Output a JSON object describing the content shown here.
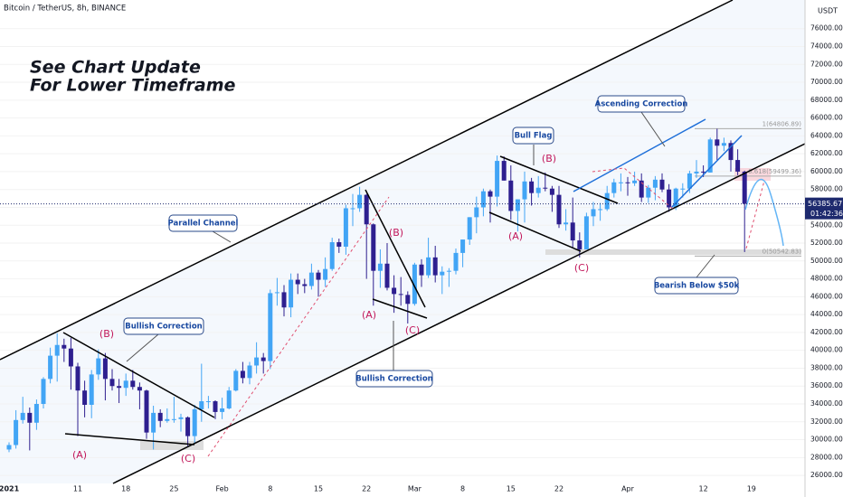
{
  "chart_data": {
    "type": "candlestick",
    "title": "Bitcoin / TetherUS, 8h, BINANCE",
    "currency": "USDT",
    "categories": [
      "2021",
      null,
      null,
      null,
      null,
      null,
      null,
      null,
      null,
      null,
      "11",
      null,
      null,
      null,
      null,
      null,
      null,
      "18",
      null,
      null,
      null,
      null,
      null,
      null,
      "25",
      null,
      null,
      null,
      null,
      null,
      null,
      "Feb",
      null,
      null,
      null,
      null,
      null,
      null,
      "8",
      null,
      null,
      null,
      null,
      null,
      null,
      "15",
      null,
      null,
      null,
      null,
      null,
      null,
      "22",
      null,
      null,
      null,
      null,
      null,
      null,
      "Mar",
      null,
      null,
      null,
      null,
      null,
      null,
      "8",
      null,
      null,
      null,
      null,
      null,
      null,
      "15",
      null,
      null,
      null,
      null,
      null,
      null,
      "22",
      null,
      null,
      null,
      null,
      null,
      null,
      null,
      null,
      null,
      "Apr",
      null,
      null,
      null,
      null,
      null,
      null,
      null,
      null,
      null,
      null,
      "12",
      null,
      null,
      null,
      null,
      null,
      null,
      "19"
    ],
    "open": [
      28900,
      29400,
      32200,
      33000,
      31900,
      34000,
      36800,
      39400,
      40600,
      40200,
      38200,
      35500,
      33900,
      37300,
      39100,
      36800,
      36000,
      35800,
      36600,
      35900,
      35500,
      30800,
      33000,
      32100,
      32300,
      32300,
      32500,
      30400,
      33400,
      34300,
      34300,
      33100,
      33500,
      35500,
      37700,
      36900,
      38300,
      39200,
      38800,
      46400,
      46500,
      44800,
      47900,
      47400,
      47200,
      48700,
      47900,
      49100,
      52100,
      51600,
      55900,
      55900,
      57400,
      54100,
      48900,
      49700,
      47000,
      46300,
      46200,
      45200,
      49600,
      48400,
      50400,
      48400,
      48800,
      48900,
      50900,
      52400,
      54900,
      56000,
      57800,
      57200,
      61200,
      59000,
      55600,
      56900,
      58900,
      57600,
      58200,
      58100,
      57400,
      54100,
      54300,
      52300,
      51300,
      55000,
      55800,
      55800,
      57600,
      58800,
      58800,
      58700,
      59000,
      57100,
      58200,
      59100,
      58000,
      56000,
      58100,
      58100,
      59800,
      60000,
      59900,
      63600,
      62900,
      63200,
      61300,
      60000,
      null
    ],
    "high": [
      29700,
      33300,
      34800,
      33600,
      34500,
      37000,
      40300,
      41900,
      41300,
      41400,
      38600,
      36600,
      37800,
      40100,
      39700,
      37900,
      36800,
      37400,
      37800,
      36400,
      35600,
      33800,
      33400,
      33500,
      34800,
      32900,
      32600,
      33900,
      38500,
      34900,
      34400,
      34700,
      35900,
      37900,
      38700,
      38700,
      40900,
      39700,
      46800,
      48100,
      47300,
      48600,
      48600,
      48000,
      49700,
      49000,
      50400,
      52600,
      52500,
      56300,
      57500,
      58300,
      57500,
      54200,
      51300,
      52000,
      48400,
      48200,
      46600,
      49800,
      50200,
      52600,
      51700,
      49400,
      49200,
      51400,
      52400,
      54900,
      57200,
      58100,
      58000,
      61800,
      61700,
      60700,
      56900,
      60000,
      59300,
      59500,
      59900,
      58400,
      58400,
      55800,
      57100,
      53200,
      55400,
      56600,
      56500,
      58400,
      59200,
      59800,
      59400,
      60000,
      59800,
      58500,
      59500,
      59800,
      58600,
      58200,
      58700,
      60100,
      61300,
      60700,
      63800,
      64800,
      63800,
      63500,
      62500,
      60100,
      null
    ],
    "low": [
      28600,
      29000,
      31800,
      28800,
      31100,
      33500,
      36300,
      36500,
      38700,
      35600,
      30400,
      32500,
      32400,
      36700,
      34400,
      35500,
      34100,
      34900,
      35600,
      33400,
      30100,
      28900,
      31400,
      31900,
      31900,
      30900,
      29300,
      29600,
      32000,
      33500,
      32300,
      32300,
      33400,
      35400,
      36300,
      36200,
      37400,
      37400,
      37900,
      45000,
      43800,
      43700,
      46300,
      46400,
      46800,
      46000,
      47100,
      48900,
      50900,
      50700,
      53900,
      55500,
      48000,
      45000,
      47000,
      46700,
      44200,
      45000,
      43000,
      45000,
      47100,
      48100,
      47600,
      46300,
      47100,
      48500,
      49300,
      51800,
      53100,
      55000,
      54300,
      56100,
      59000,
      54600,
      53300,
      54300,
      56200,
      57100,
      57800,
      55500,
      53700,
      53400,
      51500,
      50400,
      51300,
      53900,
      54500,
      55600,
      57100,
      57800,
      57300,
      58400,
      56600,
      56500,
      56800,
      57700,
      55500,
      55700,
      57100,
      57600,
      59300,
      59400,
      59900,
      61300,
      62300,
      60000,
      59600,
      51000,
      null
    ],
    "close": [
      29400,
      32200,
      33000,
      31900,
      34000,
      36800,
      39400,
      40600,
      40200,
      38200,
      35500,
      33900,
      37300,
      39100,
      36800,
      36000,
      35800,
      36600,
      35900,
      35500,
      30800,
      33000,
      32100,
      32300,
      32300,
      32500,
      30400,
      33400,
      34300,
      34300,
      33100,
      33500,
      35500,
      37700,
      36900,
      38300,
      39200,
      38800,
      46400,
      46500,
      44800,
      47900,
      47400,
      47200,
      48700,
      47900,
      49100,
      52100,
      51600,
      55900,
      55900,
      57400,
      54100,
      48900,
      49700,
      47000,
      46300,
      46200,
      45200,
      49600,
      48400,
      50400,
      48400,
      48800,
      48900,
      50900,
      52400,
      54900,
      56000,
      57800,
      57200,
      61200,
      59000,
      55600,
      56900,
      58900,
      57600,
      58200,
      58100,
      57400,
      54100,
      54300,
      52300,
      51300,
      55000,
      55800,
      55800,
      57600,
      58800,
      58800,
      58700,
      59000,
      57100,
      58200,
      59100,
      58000,
      56000,
      58100,
      58100,
      59800,
      60000,
      59900,
      63600,
      62900,
      63200,
      61300,
      60000,
      56400,
      null
    ],
    "up_color": "#42a5f5",
    "down_color": "#2e1f8f",
    "ylim": [
      25000,
      78500
    ],
    "yticks": [
      {
        "value": 26000,
        "label": "26000.00"
      },
      {
        "value": 28000,
        "label": "28000.00"
      },
      {
        "value": 30000,
        "label": "30000.00"
      },
      {
        "value": 32000,
        "label": "32000.00"
      },
      {
        "value": 34000,
        "label": "34000.00"
      },
      {
        "value": 36000,
        "label": "36000.00"
      },
      {
        "value": 38000,
        "label": "38000.00"
      },
      {
        "value": 40000,
        "label": "40000.00"
      },
      {
        "value": 42000,
        "label": "42000.00"
      },
      {
        "value": 44000,
        "label": "44000.00"
      },
      {
        "value": 46000,
        "label": "46000.00"
      },
      {
        "value": 48000,
        "label": "48000.00"
      },
      {
        "value": 50000,
        "label": "50000.00"
      },
      {
        "value": 52000,
        "label": "52000.00"
      },
      {
        "value": 54000,
        "label": "54000.00"
      },
      {
        "value": 56000,
        "label": "56000.00"
      },
      {
        "value": 58000,
        "label": "58000.00"
      },
      {
        "value": 60000,
        "label": "60000.00"
      },
      {
        "value": 62000,
        "label": "62000.00"
      },
      {
        "value": 64000,
        "label": "64000.00"
      },
      {
        "value": 66000,
        "label": "66000.00"
      },
      {
        "value": 68000,
        "label": "68000.00"
      },
      {
        "value": 70000,
        "label": "70000.00"
      },
      {
        "value": 72000,
        "label": "72000.00"
      },
      {
        "value": 74000,
        "label": "74000.00"
      },
      {
        "value": 76000,
        "label": "76000.00"
      }
    ],
    "last_price": 56385.67,
    "countdown": "01:42:36",
    "fib_levels": [
      {
        "value": 64806.89,
        "label": "1(64806.89)"
      },
      {
        "value": 59499.36,
        "label": "0.618(59499.36)"
      },
      {
        "value": 50542.83,
        "label": "0(50542.83)"
      }
    ],
    "annotations": {
      "headline": [
        "See Chart Update",
        "For Lower Timeframe"
      ],
      "parallel_channel": "Parallel Channel",
      "bullish_correction_1": "Bullish Correction",
      "bullish_correction_2": "Bullish Correction",
      "bull_flag": "Bull Flag",
      "ascending_correction": "Ascending Correction",
      "bearish_below": "Bearish Below $50k"
    },
    "waves": [
      "(A)",
      "(B)",
      "(C)",
      "(A)",
      "(B)",
      "(C)",
      "(A)",
      "(B)",
      "(C)"
    ]
  }
}
